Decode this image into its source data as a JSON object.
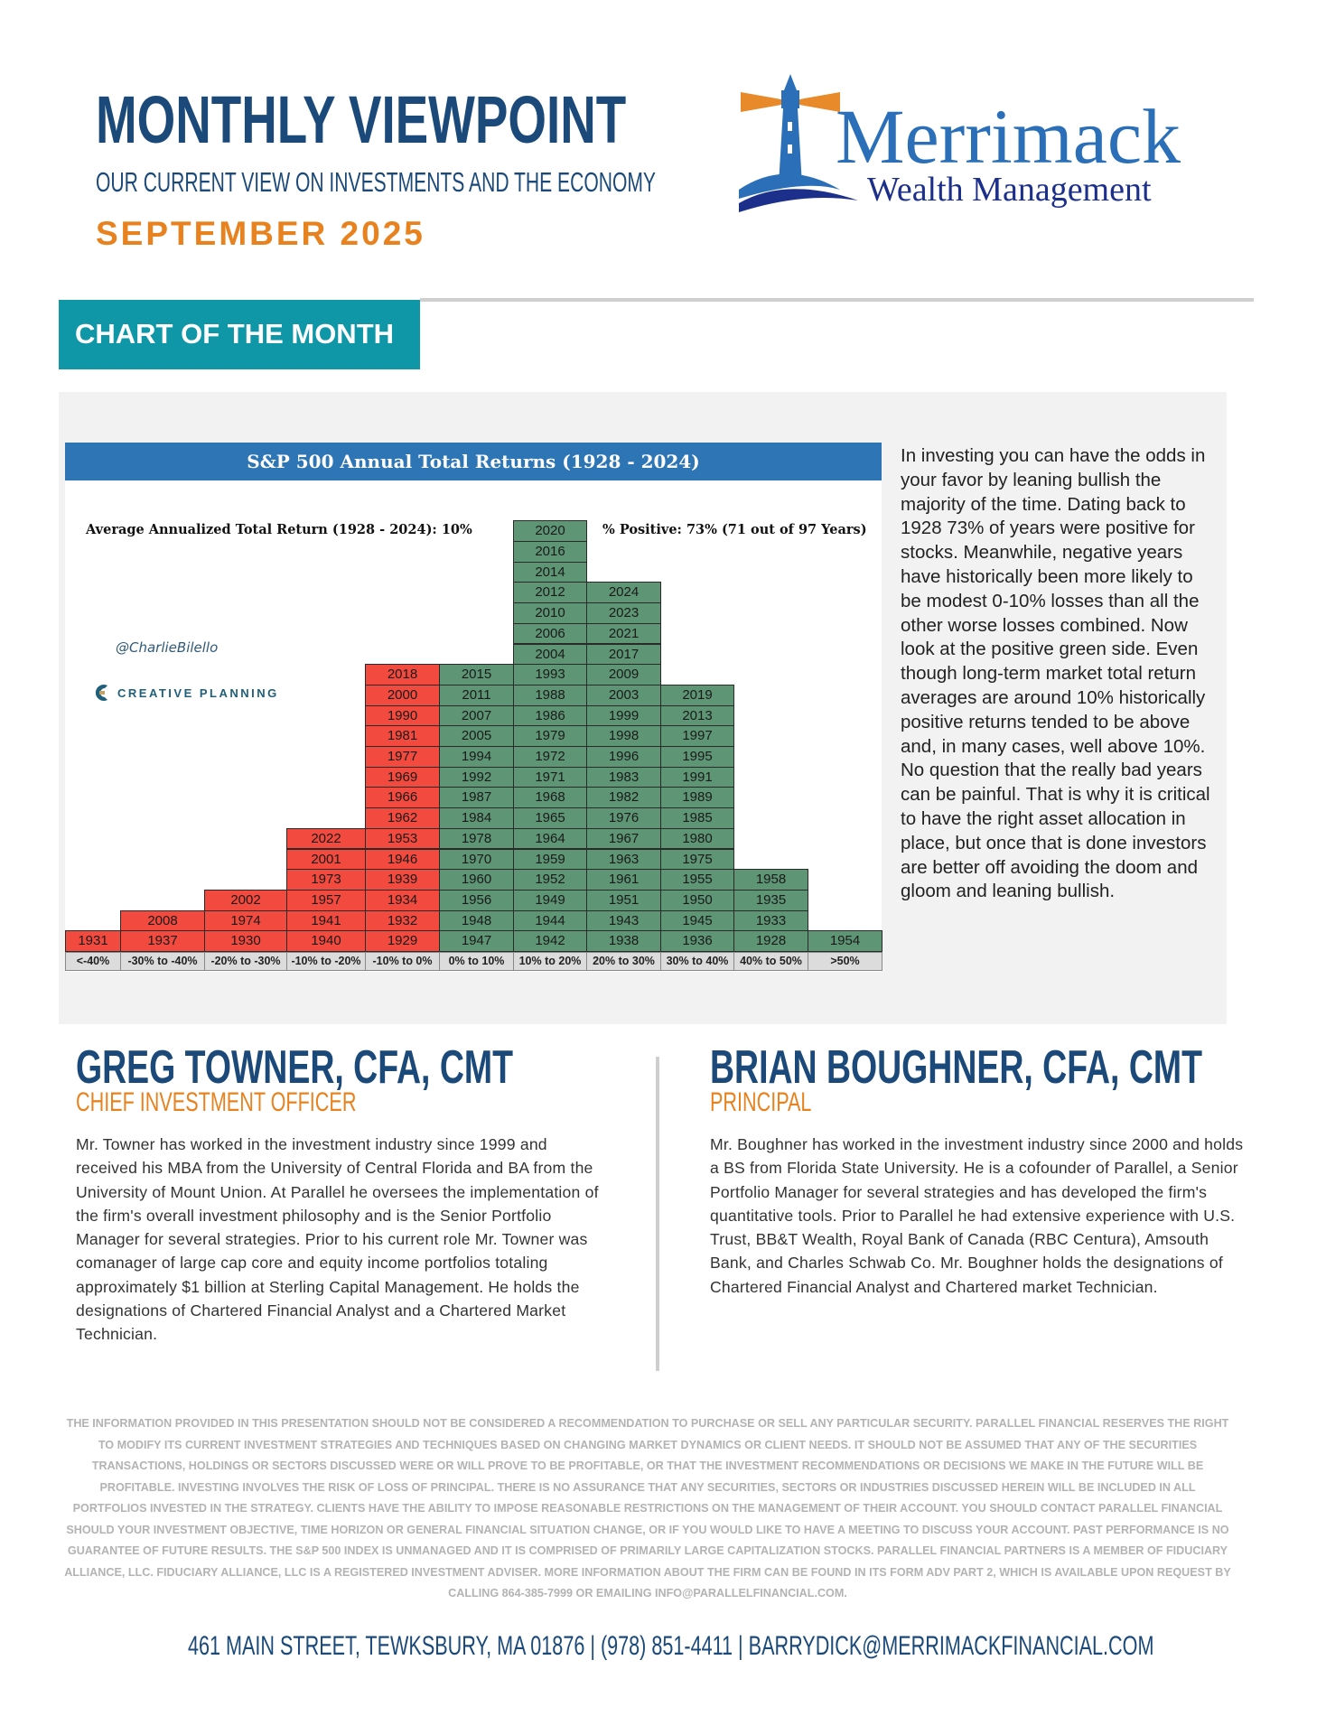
{
  "header": {
    "title": "MONTHLY VIEWPOINT",
    "subtitle": "OUR CURRENT VIEW ON INVESTMENTS AND THE ECONOMY",
    "date": "SEPTEMBER 2025"
  },
  "logo": {
    "name": "Merrimack",
    "tagline": "Wealth Management"
  },
  "section": {
    "label": "CHART OF THE MONTH"
  },
  "colors": {
    "navy": "#1b4a7a",
    "orange": "#e8821e",
    "teal": "#0f97a8",
    "chart_header": "#2e75b6",
    "negative": "#f24a3e",
    "positive": "#5e9574"
  },
  "chart_data": {
    "type": "table",
    "title": "S&P 500 Annual Total Returns (1928 - 2024)",
    "average_note": "Average Annualized Total Return (1928 - 2024): 10%",
    "positive_note": "% Positive: 73% (71 out of 97 Years)",
    "credit_handle": "@CharlieBilello",
    "credit_brand": "CREATIVE PLANNING",
    "categories": [
      "<-40%",
      "-30% to -40%",
      "-20% to -30%",
      "-10% to -20%",
      "-10% to 0%",
      "0% to 10%",
      "10% to 20%",
      "20% to 30%",
      "30% to 40%",
      "40% to 50%",
      ">50%"
    ],
    "series": [
      {
        "name": "<-40%",
        "sign": "neg",
        "years": [
          1931
        ]
      },
      {
        "name": "-30% to -40%",
        "sign": "neg",
        "years": [
          1937,
          2008
        ]
      },
      {
        "name": "-20% to -30%",
        "sign": "neg",
        "years": [
          1930,
          1974,
          2002
        ]
      },
      {
        "name": "-10% to -20%",
        "sign": "neg",
        "years": [
          1940,
          1941,
          1957,
          1973,
          2001,
          2022
        ]
      },
      {
        "name": "-10% to 0%",
        "sign": "neg",
        "years": [
          1929,
          1932,
          1934,
          1939,
          1946,
          1953,
          1962,
          1966,
          1969,
          1977,
          1981,
          1990,
          2000,
          2018
        ]
      },
      {
        "name": "0% to 10%",
        "sign": "pos",
        "years": [
          1947,
          1948,
          1956,
          1960,
          1970,
          1978,
          1984,
          1987,
          1992,
          1994,
          2005,
          2007,
          2011,
          2015
        ]
      },
      {
        "name": "10% to 20%",
        "sign": "pos",
        "years": [
          1942,
          1944,
          1949,
          1952,
          1959,
          1964,
          1965,
          1968,
          1971,
          1972,
          1979,
          1986,
          1988,
          1993,
          2004,
          2006,
          2010,
          2012,
          2014,
          2016,
          2020
        ]
      },
      {
        "name": "20% to 30%",
        "sign": "pos",
        "years": [
          1938,
          1943,
          1951,
          1961,
          1963,
          1967,
          1976,
          1982,
          1983,
          1996,
          1998,
          1999,
          2003,
          2009,
          2017,
          2021,
          2023,
          2024
        ]
      },
      {
        "name": "30% to 40%",
        "sign": "pos",
        "years": [
          1936,
          1945,
          1950,
          1955,
          1975,
          1980,
          1985,
          1989,
          1991,
          1995,
          1997,
          2013,
          2019
        ]
      },
      {
        "name": "40% to 50%",
        "sign": "pos",
        "years": [
          1928,
          1933,
          1935,
          1958
        ]
      },
      {
        "name": ">50%",
        "sign": "pos",
        "years": [
          1954
        ]
      }
    ]
  },
  "commentary": "In investing you can have the odds in your favor by leaning bullish the majority of the time. Dating back to 1928 73% of years were positive for stocks. Meanwhile, negative years have historically been more likely to be modest 0-10% losses than all the other worse losses combined. Now look at the positive green side. Even though long-term market total return averages are around 10% historically positive returns tended to be above and, in many cases, well above 10%. No question that the really bad years can be painful. That is why it is critical to have the right asset allocation in place, but once that is done investors are better off avoiding the doom and gloom and leaning bullish.",
  "bios": [
    {
      "name": "GREG TOWNER, CFA, CMT",
      "role": "CHIEF INVESTMENT OFFICER",
      "text": "Mr. Towner has worked in the investment industry since 1999 and received his MBA from the University of Central Florida and BA from the University of Mount Union. At Parallel he oversees the implementation of the firm's overall investment philosophy and is the Senior Portfolio Manager for several strategies. Prior to his current role Mr. Towner was comanager of large cap core and equity income portfolios totaling approximately $1 billion at Sterling Capital Management. He holds the designations of Chartered Financial Analyst and a Chartered Market Technician."
    },
    {
      "name": "BRIAN BOUGHNER, CFA, CMT",
      "role": "PRINCIPAL",
      "text": "Mr. Boughner has worked in the investment industry since 2000 and holds a BS from Florida State University. He is a cofounder of Parallel, a Senior Portfolio Manager for several strategies and has developed the firm's quantitative tools. Prior to Parallel he had extensive experience with U.S. Trust, BB&T Wealth, Royal Bank of Canada (RBC Centura), Amsouth Bank, and Charles Schwab Co. Mr. Boughner holds the designations of Chartered Financial Analyst and Chartered market Technician."
    }
  ],
  "disclaimer": "THE INFORMATION PROVIDED IN THIS PRESENTATION SHOULD NOT BE CONSIDERED A RECOMMENDATION TO PURCHASE OR SELL ANY PARTICULAR SECURITY. PARALLEL FINANCIAL RESERVES THE RIGHT TO MODIFY ITS CURRENT INVESTMENT STRATEGIES AND TECHNIQUES BASED ON CHANGING MARKET DYNAMICS OR CLIENT NEEDS. IT SHOULD NOT BE ASSUMED THAT ANY OF THE SECURITIES TRANSACTIONS, HOLDINGS OR SECTORS DISCUSSED WERE OR WILL PROVE TO BE PROFITABLE, OR THAT THE INVESTMENT RECOMMENDATIONS OR DECISIONS WE MAKE IN THE FUTURE WILL BE PROFITABLE. INVESTING INVOLVES THE RISK OF LOSS OF PRINCIPAL. THERE IS NO ASSURANCE THAT ANY SECURITIES, SECTORS OR INDUSTRIES DISCUSSED HEREIN WILL BE INCLUDED IN ALL PORTFOLIOS INVESTED IN THE STRATEGY. CLIENTS HAVE THE ABILITY TO IMPOSE REASONABLE RESTRICTIONS ON THE MANAGEMENT OF THEIR ACCOUNT. YOU SHOULD CONTACT PARALLEL FINANCIAL SHOULD YOUR INVESTMENT OBJECTIVE, TIME HORIZON OR GENERAL FINANCIAL SITUATION CHANGE, OR IF YOU WOULD LIKE TO HAVE A MEETING TO DISCUSS YOUR ACCOUNT. PAST PERFORMANCE IS NO GUARANTEE OF FUTURE RESULTS. THE S&P 500 INDEX IS UNMANAGED AND IT IS COMPRISED OF PRIMARILY LARGE CAPITALIZATION STOCKS. PARALLEL FINANCIAL PARTNERS IS A MEMBER OF FIDUCIARY ALLIANCE, LLC. FIDUCIARY ALLIANCE, LLC IS A REGISTERED INVESTMENT ADVISER. MORE INFORMATION ABOUT THE FIRM CAN BE FOUND IN ITS FORM ADV PART 2, WHICH IS AVAILABLE UPON REQUEST BY CALLING 864-385-7999 OR EMAILING INFO@PARALLELFINANCIAL.COM.",
  "footer": {
    "contact": "461 MAIN STREET, TEWKSBURY, MA 01876 | (978) 851-4411 | BARRYDICK@MERRIMACKFINANCIAL.COM"
  }
}
